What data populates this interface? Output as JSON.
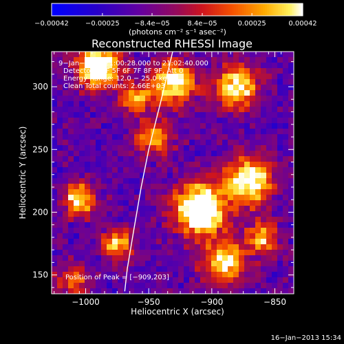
{
  "chart_data": {
    "type": "heatmap",
    "title": "Reconstructed RHESSI Image",
    "xlabel": "Heliocentric X (arcsec)",
    "ylabel": "Heliocentric Y (arcsec)",
    "xlim": [
      -1027,
      -835
    ],
    "ylim": [
      135,
      328
    ],
    "x_ticks": [
      -1000,
      -950,
      -900,
      -850
    ],
    "y_ticks": [
      150,
      200,
      250,
      300
    ],
    "x_tick_labels": [
      "−1000",
      "−950",
      "−900",
      "−850"
    ],
    "y_tick_labels": [
      "150",
      "200",
      "250",
      "300"
    ],
    "colorbar": {
      "range": [
        -0.00042,
        0.00042
      ],
      "ticks": [
        -0.00042,
        -0.00025,
        -8.4e-05,
        8.4e-05,
        0.00025,
        0.00042
      ],
      "tick_labels": [
        "−0.00042",
        "−0.00025",
        "−8.4e−05",
        "8.4e−05",
        "0.00025",
        "0.00042"
      ],
      "unit_label": "(photons cm⁻² s⁻¹ asec⁻²)"
    },
    "annotations": [
      "9−Jan−2013 21:00:28.000 to 21:02:40.000",
      "Detectors: 3F 5F 6F 7F 8F 9F, Att 0",
      "Energy Range: 12.0 − 25.0 keV",
      "Clean    Total counts: 2.66E+03"
    ],
    "peak_label": "Position of Peak = [−909,203]",
    "peak": [
      -909,
      203
    ],
    "sources": [
      {
        "x": -909,
        "y": 203,
        "r": 14,
        "a": 1.0
      },
      {
        "x": -990,
        "y": 316,
        "r": 12,
        "a": 0.85
      },
      {
        "x": -930,
        "y": 303,
        "r": 12,
        "a": 0.75
      },
      {
        "x": -880,
        "y": 300,
        "r": 12,
        "a": 0.7
      },
      {
        "x": -870,
        "y": 225,
        "r": 13,
        "a": 0.8
      },
      {
        "x": -1005,
        "y": 210,
        "r": 9,
        "a": 0.7
      },
      {
        "x": -945,
        "y": 260,
        "r": 10,
        "a": 0.55
      },
      {
        "x": -975,
        "y": 175,
        "r": 9,
        "a": 0.55
      },
      {
        "x": -890,
        "y": 160,
        "r": 12,
        "a": 0.65
      },
      {
        "x": -860,
        "y": 180,
        "r": 9,
        "a": 0.55
      },
      {
        "x": -1010,
        "y": 145,
        "r": 9,
        "a": 0.45
      },
      {
        "x": -960,
        "y": 290,
        "r": 9,
        "a": 0.5
      }
    ],
    "limb": [
      [
        -931,
        328
      ],
      [
        -940,
        290
      ],
      [
        -950,
        250
      ],
      [
        -956,
        220
      ],
      [
        -962,
        185
      ],
      [
        -967,
        155
      ],
      [
        -969,
        137
      ]
    ]
  },
  "footer": {
    "date": "16−Jan−2013 15:34"
  }
}
